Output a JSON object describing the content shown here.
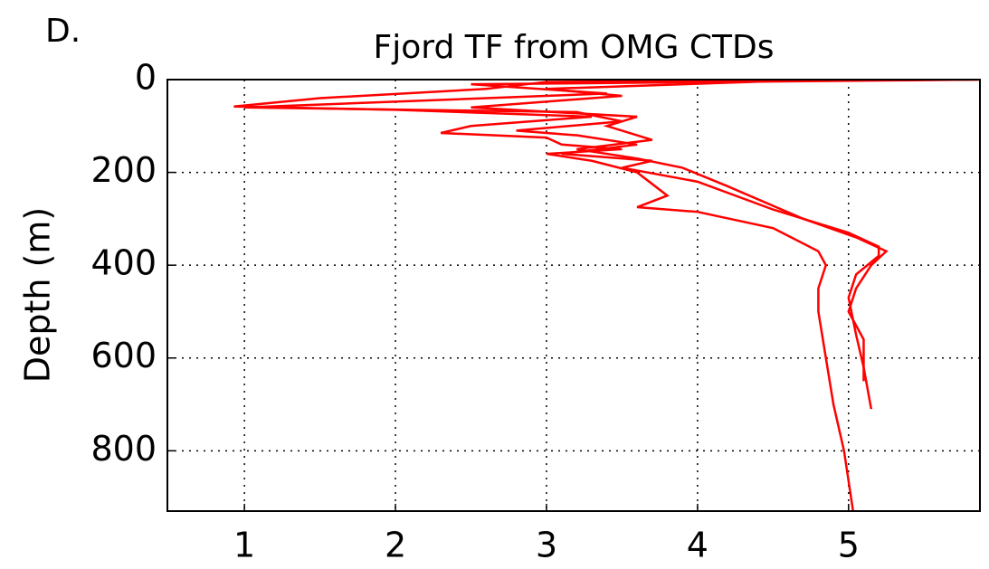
{
  "chart_data": {
    "type": "line",
    "panel_label": "D.",
    "title": "Fjord TF from OMG CTDs",
    "ylabel": "Depth (m)",
    "xlim": [
      0.49,
      5.87
    ],
    "xticks": [
      1,
      2,
      3,
      4,
      5
    ],
    "ylim": [
      930,
      0
    ],
    "yticks": [
      0,
      200,
      400,
      600,
      800
    ],
    "grid": true,
    "series": [
      {
        "color": "#ff0000",
        "x": [
          5.85,
          3.0,
          2.6,
          1.5,
          0.93,
          2.0,
          3.3,
          2.5,
          2.3,
          3.0,
          3.1,
          3.5,
          3.0,
          3.3,
          3.6,
          3.8,
          3.6,
          4.0,
          4.5,
          4.8,
          4.85,
          4.8,
          4.8,
          4.85,
          4.9,
          4.97,
          5.03
        ],
        "values": [
          0,
          5,
          20,
          40,
          58,
          65,
          80,
          100,
          115,
          125,
          140,
          150,
          160,
          175,
          200,
          250,
          275,
          285,
          320,
          370,
          400,
          450,
          500,
          600,
          700,
          800,
          930
        ]
      },
      {
        "color": "#ff0000",
        "x": [
          5.87,
          2.5,
          3.4,
          1.8,
          1.0,
          3.2,
          3.5,
          2.8,
          3.2,
          3.6,
          3.1,
          3.7,
          3.5,
          4.0,
          4.5,
          5.0,
          5.2,
          5.2,
          5.05,
          5.0,
          5.05,
          5.1,
          5.15
        ],
        "values": [
          0,
          10,
          30,
          50,
          60,
          70,
          90,
          110,
          120,
          140,
          160,
          175,
          190,
          220,
          280,
          330,
          360,
          380,
          420,
          470,
          550,
          620,
          710
        ]
      },
      {
        "color": "#ff0000",
        "x": [
          4.8,
          3.0,
          3.5,
          2.5,
          3.6,
          3.4,
          3.7,
          3.2,
          3.6,
          3.9,
          4.2,
          4.7,
          5.05,
          5.25,
          5.15,
          5.05,
          5.0,
          5.1,
          5.1
        ],
        "values": [
          0,
          20,
          35,
          60,
          80,
          100,
          130,
          150,
          170,
          190,
          230,
          300,
          340,
          370,
          400,
          450,
          500,
          560,
          650
        ]
      }
    ]
  }
}
